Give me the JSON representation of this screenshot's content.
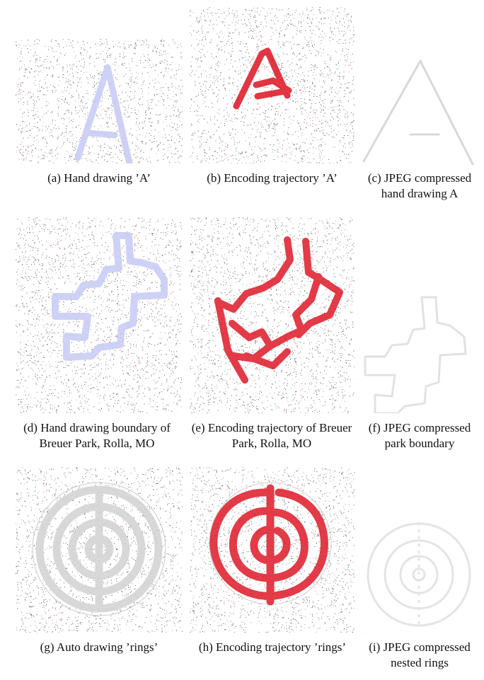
{
  "figure": {
    "panels": [
      {
        "id": "a",
        "caption_lines": [
          "(a) Hand drawing ’A’"
        ]
      },
      {
        "id": "b",
        "caption_lines": [
          "(b) Encoding trajectory ’A’"
        ]
      },
      {
        "id": "c",
        "caption_lines": [
          "(c) JPEG compressed",
          "hand drawing A"
        ]
      },
      {
        "id": "d",
        "caption_lines": [
          "(d) Hand drawing boundary of",
          "Breuer Park, Rolla, MO"
        ]
      },
      {
        "id": "e",
        "caption_lines": [
          "(e) Encoding trajectory of Breuer",
          "Park, Rolla, MO"
        ]
      },
      {
        "id": "f",
        "caption_lines": [
          "(f) JPEG compressed",
          "park boundary"
        ]
      },
      {
        "id": "g",
        "caption_lines": [
          "(g) Auto drawing ’rings’"
        ]
      },
      {
        "id": "h",
        "caption_lines": [
          "(h) Encoding trajectory ’rings’"
        ]
      },
      {
        "id": "i",
        "caption_lines": [
          "(i) JPEG compressed",
          "nested rings"
        ]
      }
    ],
    "colors": {
      "hand_drawing": "#c9cdf5",
      "encoding": "#e0202e",
      "jpeg_outline": "#d8d8d8",
      "auto_drawing": "#d4d4d4",
      "noise_dots": "#333333"
    }
  }
}
